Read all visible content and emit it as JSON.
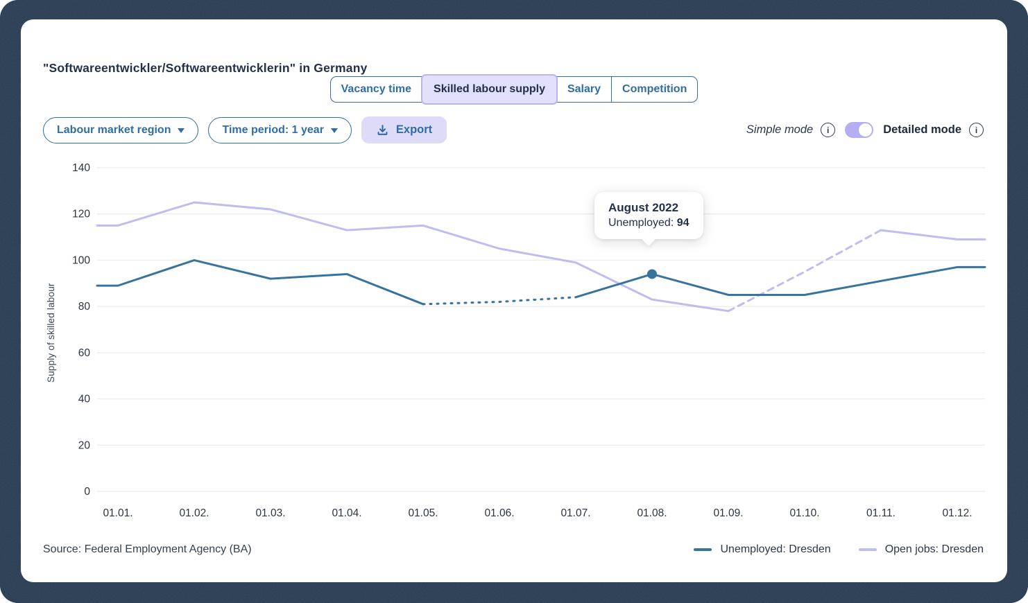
{
  "page": {
    "title": "\"Softwareentwickler/Softwareentwicklerin\" in Germany"
  },
  "tabs": [
    {
      "label": "Vacancy time",
      "active": false
    },
    {
      "label": "Skilled labour supply",
      "active": true
    },
    {
      "label": "Salary",
      "active": false
    },
    {
      "label": "Competition",
      "active": false
    }
  ],
  "controls": {
    "region_dropdown_label": "Labour market region",
    "time_dropdown_label": "Time period: 1 year",
    "export_label": "Export",
    "simple_mode_label": "Simple mode",
    "detailed_mode_label": "Detailed mode",
    "mode_toggle_state": "detailed"
  },
  "icons": {
    "export": "download-icon",
    "simple_info": "info-icon",
    "detailed_info": "info-icon",
    "dropdown_caret": "chevron-down-icon"
  },
  "colors": {
    "accent_blue": "#2f6da5",
    "selected_tab_bg": "#e2e0fb",
    "toggle_purple": "#b5aef2",
    "unemployed_line": "#36749f",
    "open_jobs_line": "#bfbcf2",
    "gridline": "#ededed",
    "frame_bg": "#26384d"
  },
  "tooltip": {
    "title": "August 2022",
    "label": "Unemployed:",
    "value": "94"
  },
  "footer": {
    "source": "Source: Federal Employment Agency (BA)"
  },
  "legend": [
    {
      "label": "Unemployed: Dresden",
      "color": "#36749f"
    },
    {
      "label": "Open jobs: Dresden",
      "color": "#bfbcf2"
    }
  ],
  "chart_data": {
    "type": "line",
    "title": "",
    "xlabel": "",
    "ylabel": "Supply of skilled labour",
    "ylim": [
      0,
      140
    ],
    "ytick_step": 20,
    "grid": true,
    "legend_position": "bottom-right",
    "categories": [
      "01.01.",
      "01.02.",
      "01.03.",
      "01.04.",
      "01.05.",
      "01.06.",
      "01.07.",
      "01.08.",
      "01.09.",
      "01.10.",
      "01.11.",
      "01.12."
    ],
    "series": [
      {
        "name": "Unemployed: Dresden",
        "color": "#36749f",
        "width": 3,
        "values": [
          89,
          100,
          92,
          94,
          81,
          82,
          84,
          94,
          85,
          85,
          91,
          97
        ],
        "dashed_between": [
          4,
          6
        ],
        "dash_style": "dotted"
      },
      {
        "name": "Open jobs: Dresden",
        "color": "#bfbcf2",
        "width": 3,
        "values": [
          115,
          125,
          122,
          113,
          115,
          105,
          99,
          83,
          78,
          95,
          113,
          109
        ],
        "dashed_between": [
          8,
          10
        ],
        "dash_style": "dashed"
      }
    ],
    "highlight": {
      "series": 0,
      "index": 7,
      "value": 94
    }
  }
}
